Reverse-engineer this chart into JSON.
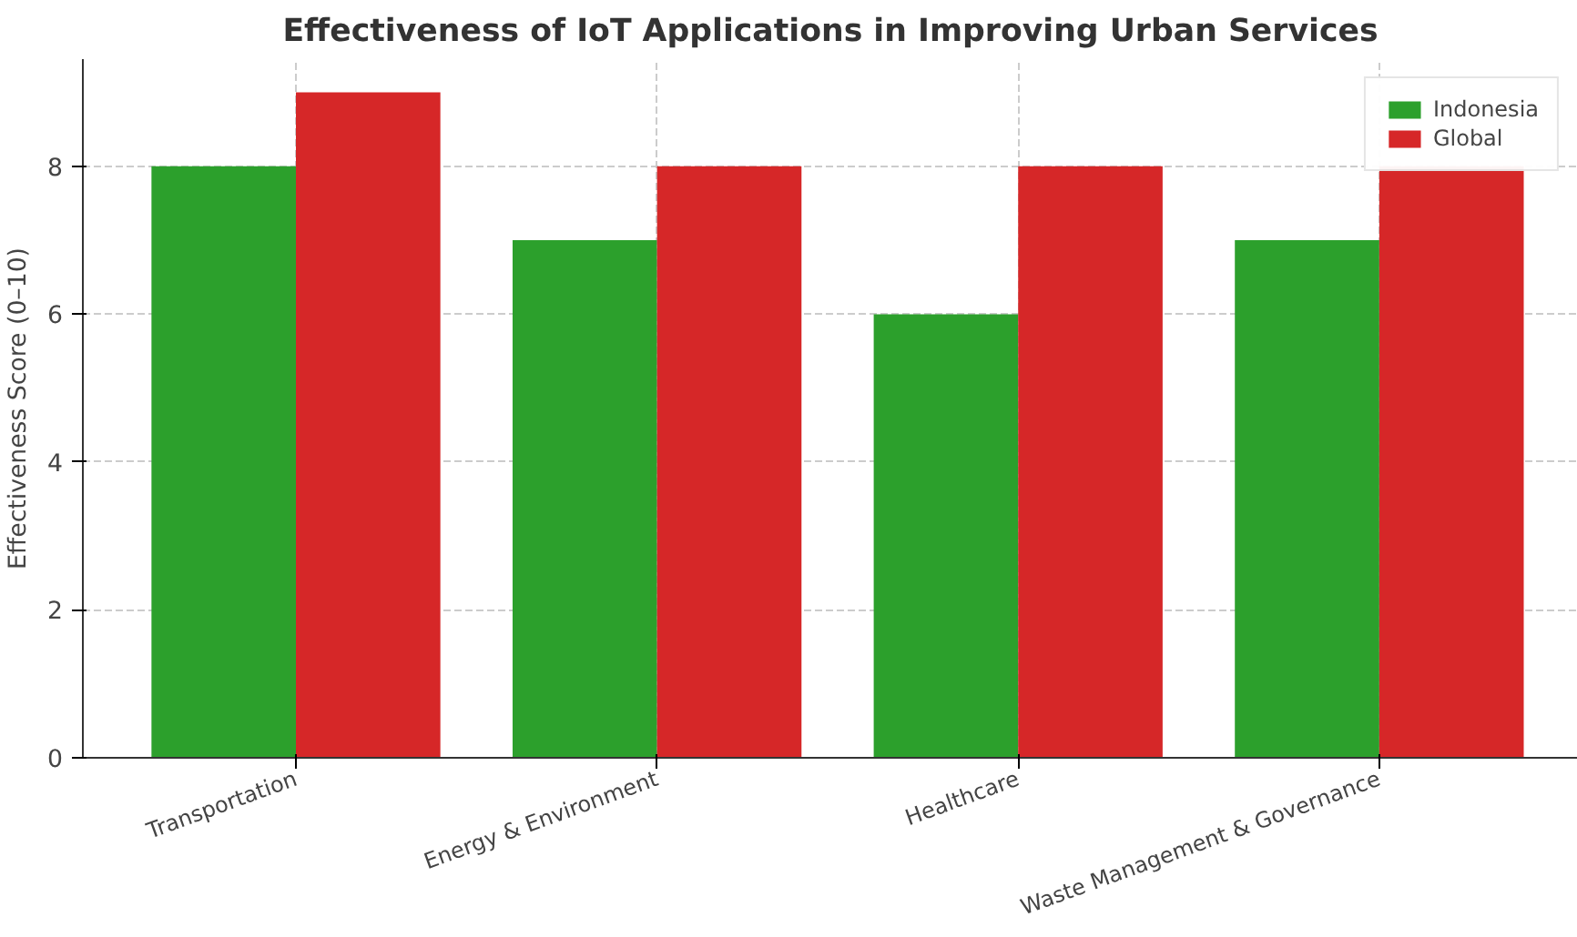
{
  "chart_data": {
    "type": "bar",
    "title": "Effectiveness of IoT Applications in Improving Urban Services",
    "ylabel": "Effectiveness Score (0–10)",
    "categories": [
      "Transportation",
      "Energy & Environment",
      "Healthcare",
      "Waste Management & Governance"
    ],
    "series": [
      {
        "name": "Indonesia",
        "color": "#2ca02c",
        "values": [
          8,
          7,
          6,
          7
        ]
      },
      {
        "name": "Global",
        "color": "#d62728",
        "values": [
          9,
          8,
          8,
          8
        ]
      }
    ],
    "ylim": [
      0,
      9.45
    ],
    "yticks": [
      0,
      2,
      4,
      6,
      8
    ],
    "grid": true,
    "legend": "top right"
  }
}
